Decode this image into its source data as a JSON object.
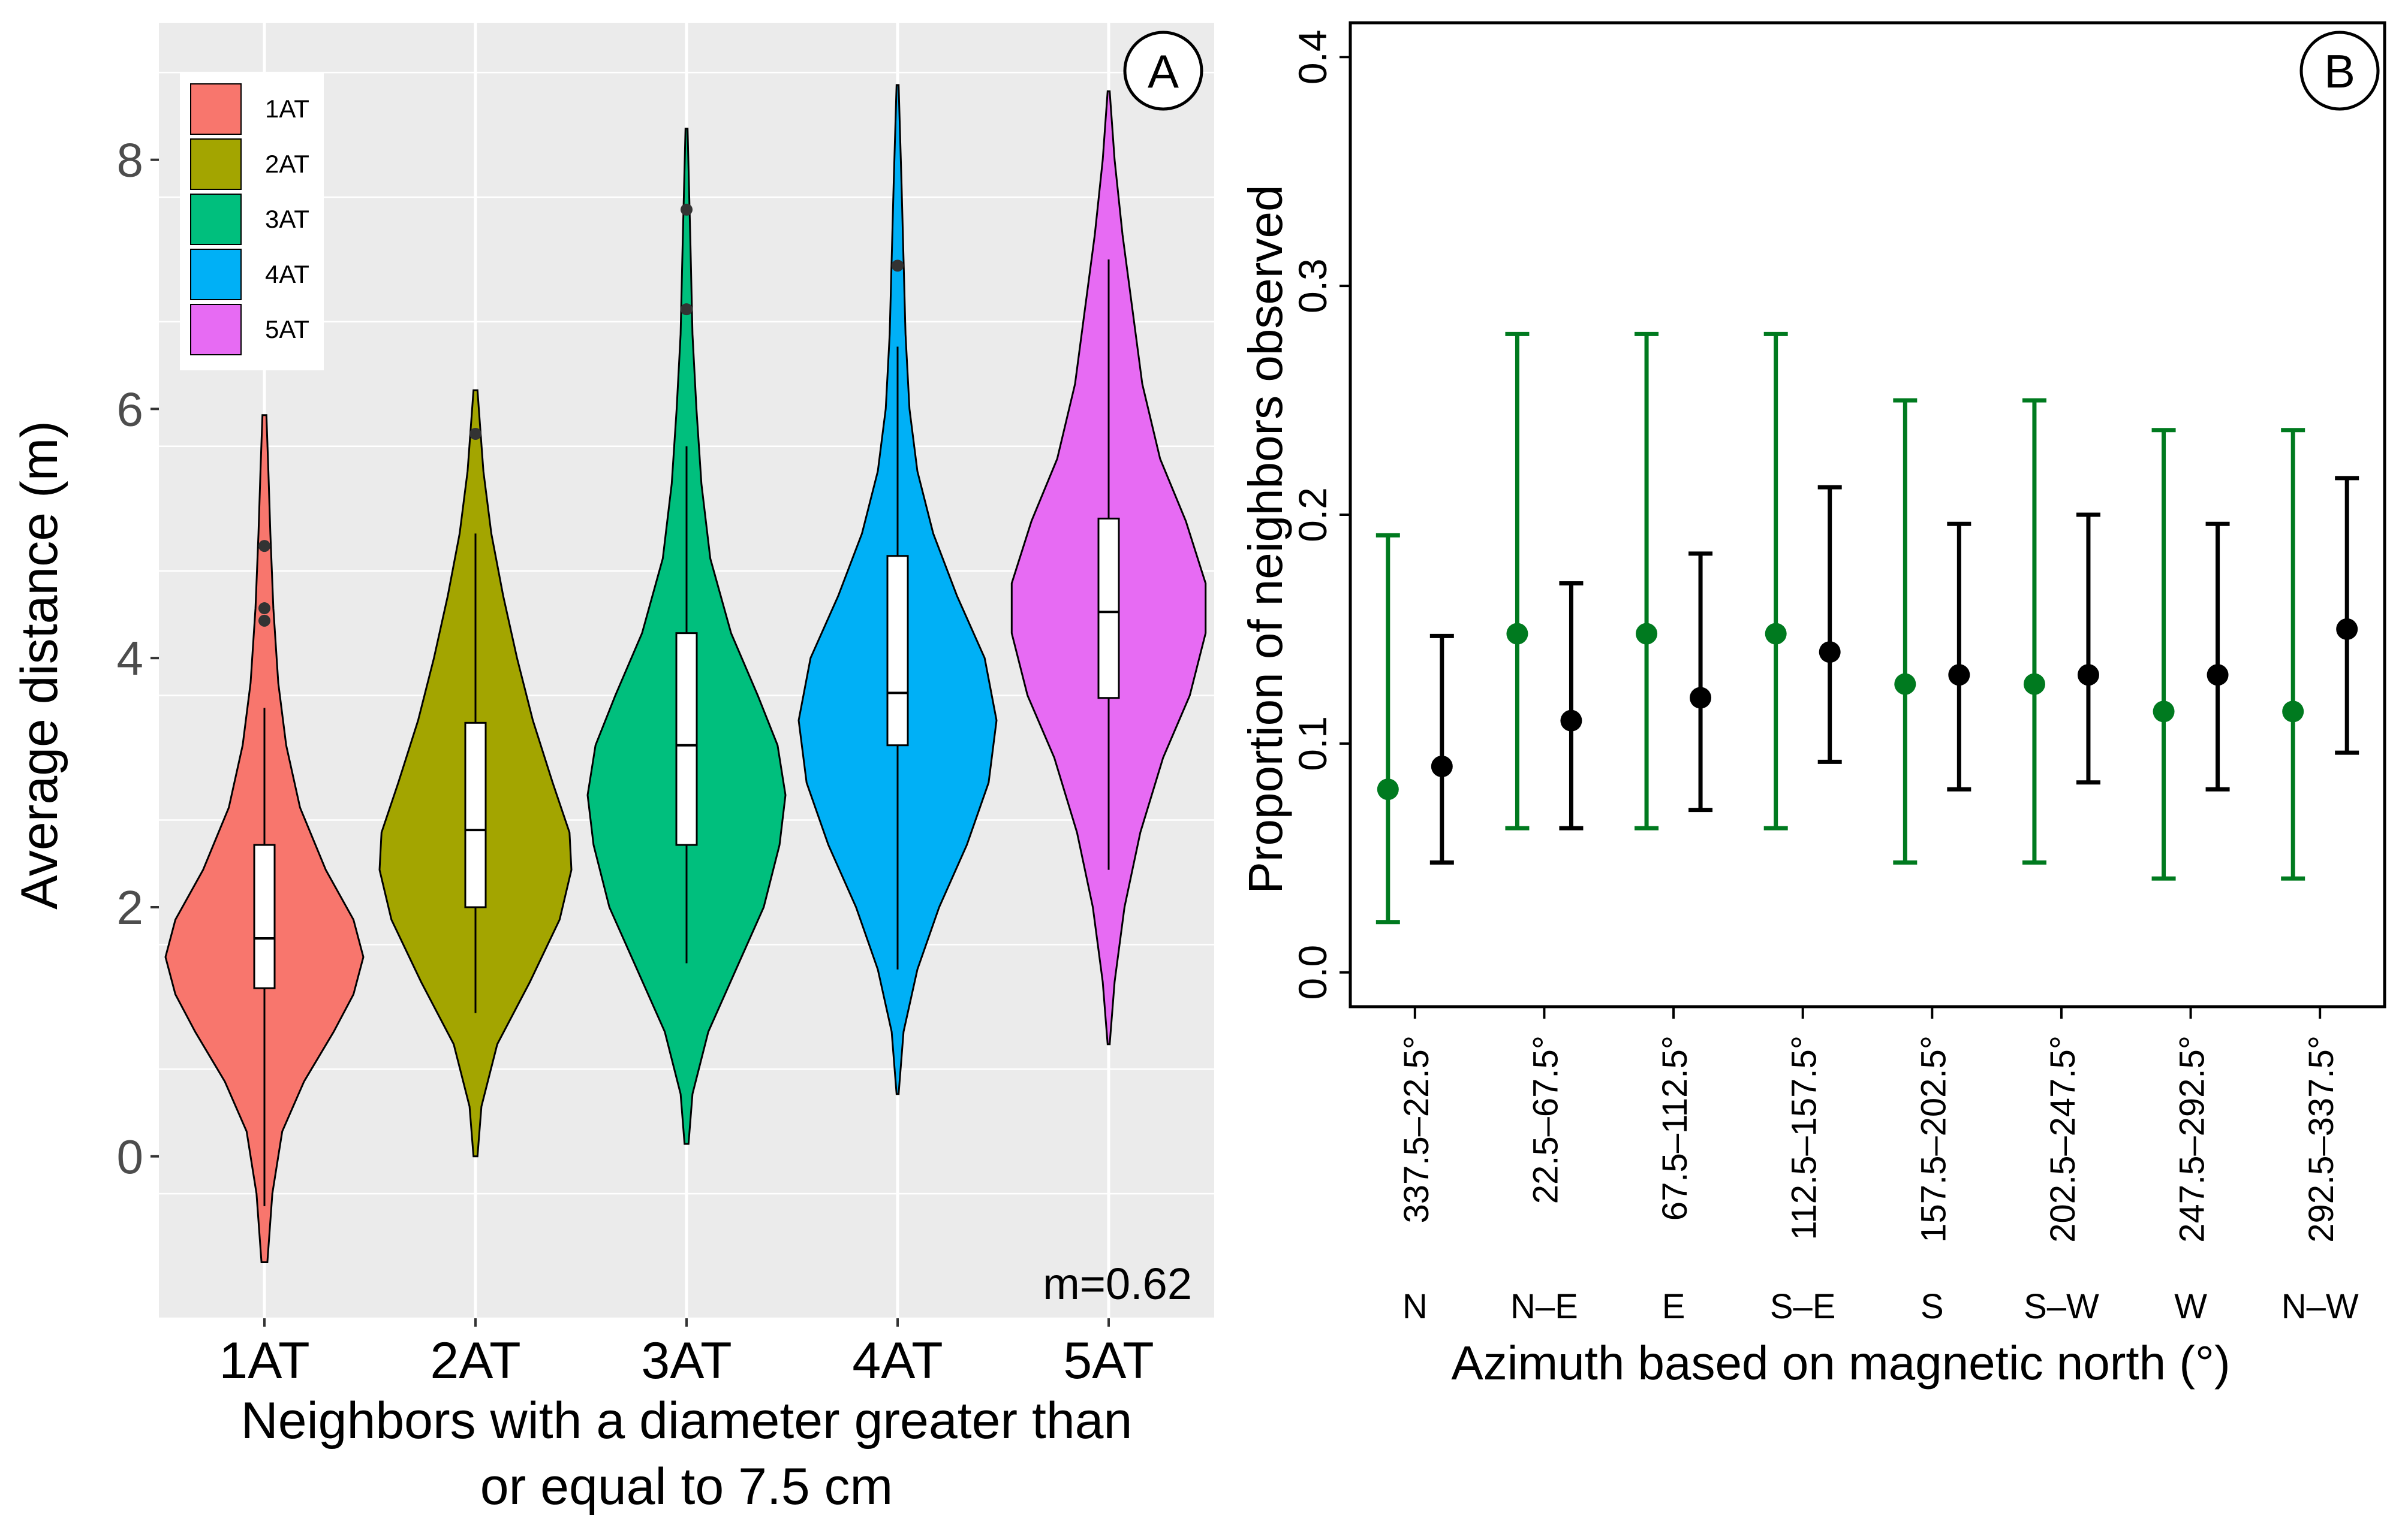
{
  "chart_data": [
    {
      "panel_label": "A",
      "type": "violin",
      "xlabel": "Neighbors with a diameter greater than or equal to 7.5 cm",
      "xlabel_lines": [
        "Neighbors with a diameter greater than",
        "or equal to 7.5 cm"
      ],
      "ylabel": "Average distance (m)",
      "ylim": [
        -1.3,
        9.1
      ],
      "yticks": [
        0,
        2,
        4,
        6,
        8
      ],
      "grid": true,
      "legend_position": "top-left",
      "annotation": "m=0.62",
      "categories": [
        "1AT",
        "2AT",
        "3AT",
        "4AT",
        "5AT"
      ],
      "series": [
        {
          "name": "1AT",
          "color": "#f8766d",
          "min": -0.85,
          "max": 5.95,
          "q1": 1.35,
          "median": 1.75,
          "q3": 2.5,
          "whisker_low": -0.4,
          "whisker_high": 3.6,
          "outliers": [
            4.3,
            4.4,
            4.9
          ],
          "density": [
            [
              -0.85,
              0.03
            ],
            [
              -0.3,
              0.08
            ],
            [
              0.2,
              0.18
            ],
            [
              0.6,
              0.4
            ],
            [
              1.0,
              0.7
            ],
            [
              1.3,
              0.9
            ],
            [
              1.6,
              1.0
            ],
            [
              1.9,
              0.9
            ],
            [
              2.3,
              0.62
            ],
            [
              2.8,
              0.36
            ],
            [
              3.3,
              0.22
            ],
            [
              3.8,
              0.14
            ],
            [
              4.4,
              0.09
            ],
            [
              5.0,
              0.06
            ],
            [
              5.5,
              0.04
            ],
            [
              5.95,
              0.02
            ]
          ]
        },
        {
          "name": "2AT",
          "color": "#a3a500",
          "min": 0.0,
          "max": 6.15,
          "q1": 2.0,
          "median": 2.62,
          "q3": 3.48,
          "whisker_low": 1.15,
          "whisker_high": 5.0,
          "outliers": [
            5.8
          ],
          "density": [
            [
              0.0,
              0.02
            ],
            [
              0.4,
              0.06
            ],
            [
              0.9,
              0.22
            ],
            [
              1.4,
              0.55
            ],
            [
              1.9,
              0.85
            ],
            [
              2.3,
              0.97
            ],
            [
              2.6,
              0.95
            ],
            [
              3.0,
              0.78
            ],
            [
              3.5,
              0.58
            ],
            [
              4.0,
              0.42
            ],
            [
              4.5,
              0.28
            ],
            [
              5.0,
              0.16
            ],
            [
              5.5,
              0.08
            ],
            [
              6.15,
              0.02
            ]
          ]
        },
        {
          "name": "3AT",
          "color": "#00bf7d",
          "min": 0.1,
          "max": 8.25,
          "q1": 2.5,
          "median": 3.3,
          "q3": 4.2,
          "whisker_low": 1.55,
          "whisker_high": 5.7,
          "outliers": [
            6.8,
            7.6
          ],
          "density": [
            [
              0.1,
              0.02
            ],
            [
              0.5,
              0.06
            ],
            [
              1.0,
              0.22
            ],
            [
              1.5,
              0.5
            ],
            [
              2.0,
              0.78
            ],
            [
              2.5,
              0.94
            ],
            [
              2.9,
              1.0
            ],
            [
              3.3,
              0.92
            ],
            [
              3.7,
              0.72
            ],
            [
              4.2,
              0.45
            ],
            [
              4.8,
              0.24
            ],
            [
              5.4,
              0.15
            ],
            [
              6.0,
              0.1
            ],
            [
              6.6,
              0.06
            ],
            [
              7.3,
              0.04
            ],
            [
              8.25,
              0.01
            ]
          ]
        },
        {
          "name": "4AT",
          "color": "#00b0f6",
          "min": 0.5,
          "max": 8.6,
          "q1": 3.3,
          "median": 3.72,
          "q3": 4.82,
          "whisker_low": 1.5,
          "whisker_high": 6.5,
          "outliers": [
            7.15
          ],
          "density": [
            [
              0.5,
              0.01
            ],
            [
              1.0,
              0.06
            ],
            [
              1.5,
              0.2
            ],
            [
              2.0,
              0.42
            ],
            [
              2.5,
              0.7
            ],
            [
              3.0,
              0.92
            ],
            [
              3.5,
              1.0
            ],
            [
              4.0,
              0.88
            ],
            [
              4.5,
              0.6
            ],
            [
              5.0,
              0.36
            ],
            [
              5.5,
              0.2
            ],
            [
              6.0,
              0.12
            ],
            [
              6.6,
              0.08
            ],
            [
              7.2,
              0.06
            ],
            [
              7.8,
              0.04
            ],
            [
              8.6,
              0.01
            ]
          ]
        },
        {
          "name": "5AT",
          "color": "#e76bf3",
          "min": 0.9,
          "max": 8.55,
          "q1": 3.68,
          "median": 4.37,
          "q3": 5.12,
          "whisker_low": 2.3,
          "whisker_high": 7.2,
          "outliers": [],
          "density": [
            [
              0.9,
              0.01
            ],
            [
              1.4,
              0.06
            ],
            [
              2.0,
              0.16
            ],
            [
              2.6,
              0.32
            ],
            [
              3.2,
              0.55
            ],
            [
              3.7,
              0.82
            ],
            [
              4.2,
              0.98
            ],
            [
              4.6,
              0.98
            ],
            [
              5.1,
              0.78
            ],
            [
              5.6,
              0.52
            ],
            [
              6.2,
              0.34
            ],
            [
              6.8,
              0.24
            ],
            [
              7.4,
              0.14
            ],
            [
              8.0,
              0.06
            ],
            [
              8.55,
              0.01
            ]
          ]
        }
      ]
    },
    {
      "panel_label": "B",
      "type": "errorbar",
      "xlabel": "Azimuth based on magnetic north (°)",
      "ylabel": "Proportion of neighbors observed",
      "ylim": [
        -0.015,
        0.415
      ],
      "yticks": [
        0.0,
        0.1,
        0.2,
        0.3,
        0.4
      ],
      "ytick_labels": [
        "0.0",
        "0.1",
        "0.2",
        "0.3",
        "0.4"
      ],
      "grid": false,
      "categories": [
        "337.5–22.5°",
        "22.5–67.5°",
        "67.5–112.5°",
        "112.5–157.5°",
        "157.5–202.5°",
        "202.5–247.5°",
        "247.5–292.5°",
        "292.5–337.5°"
      ],
      "directions": [
        "N",
        "N–E",
        "E",
        "S–E",
        "S",
        "S–W",
        "W",
        "N–W"
      ],
      "series": [
        {
          "color": "#007a1f",
          "values": [
            0.08,
            0.148,
            0.148,
            0.148,
            0.126,
            0.126,
            0.114,
            0.114
          ],
          "lower": [
            0.022,
            0.063,
            0.063,
            0.063,
            0.048,
            0.048,
            0.041,
            0.041
          ],
          "upper": [
            0.191,
            0.279,
            0.279,
            0.279,
            0.25,
            0.25,
            0.237,
            0.237
          ]
        },
        {
          "color": "#000000",
          "values": [
            0.09,
            0.11,
            0.12,
            0.14,
            0.13,
            0.13,
            0.13,
            0.15
          ],
          "lower": [
            0.048,
            0.063,
            0.071,
            0.092,
            0.08,
            0.083,
            0.08,
            0.096
          ],
          "upper": [
            0.147,
            0.17,
            0.183,
            0.212,
            0.196,
            0.2,
            0.196,
            0.216
          ]
        }
      ]
    }
  ]
}
